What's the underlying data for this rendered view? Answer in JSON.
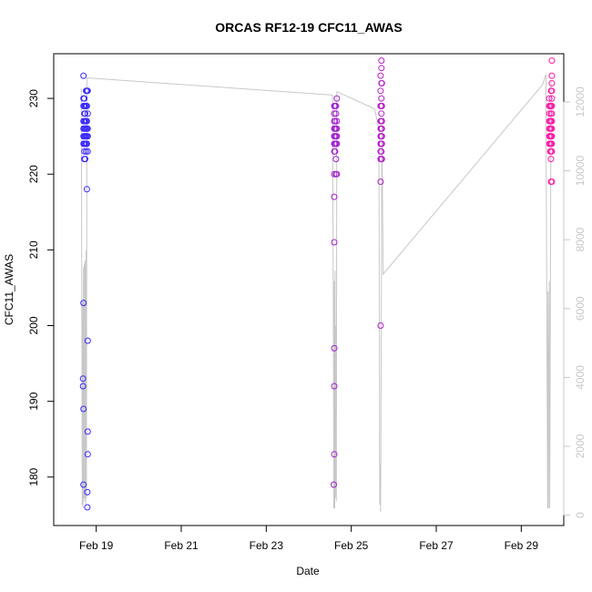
{
  "chart_data": {
    "type": "scatter",
    "title": "ORCAS RF12-19 CFC11_AWAS",
    "xlabel": "Date",
    "ylabel": "CFC11_AWAS",
    "xlim": [
      "2016-02-18T00:00",
      "2016-03-01T00:00"
    ],
    "ylim": [
      173.6,
      235.9
    ],
    "x_ticks": [
      {
        "value": "2016-02-19",
        "label": "Feb 19"
      },
      {
        "value": "2016-02-21",
        "label": "Feb 21"
      },
      {
        "value": "2016-02-23",
        "label": "Feb 23"
      },
      {
        "value": "2016-02-25",
        "label": "Feb 25"
      },
      {
        "value": "2016-02-27",
        "label": "Feb 27"
      },
      {
        "value": "2016-02-29",
        "label": "Feb 29"
      }
    ],
    "y_ticks": [
      180,
      190,
      200,
      210,
      220,
      230
    ],
    "right_axis": {
      "ylim": [
        -300,
        13400
      ],
      "ticks": [
        0,
        2000,
        4000,
        6000,
        8000,
        10000,
        12000
      ],
      "color": "#c8c8c8"
    },
    "grid": false,
    "colors": {
      "points_start": "#3a2aff",
      "points_end": "#ff1aa8",
      "altitude_line": "#c8c8c8"
    },
    "series": [
      {
        "style": "points",
        "points": [
          [
            "2016-02-18T16:48",
            233
          ],
          [
            "2016-02-18T16:48",
            230
          ],
          [
            "2016-02-18T16:48",
            229
          ],
          [
            "2016-02-18T16:48",
            227
          ],
          [
            "2016-02-18T16:48",
            226
          ],
          [
            "2016-02-18T16:48",
            225
          ],
          [
            "2016-02-18T16:48",
            224
          ],
          [
            "2016-02-18T16:48",
            203
          ],
          [
            "2016-02-18T16:48",
            189
          ],
          [
            "2016-02-18T16:48",
            179
          ],
          [
            "2016-02-18T16:34",
            193
          ],
          [
            "2016-02-18T16:34",
            192
          ],
          [
            "2016-02-18T17:17",
            230
          ],
          [
            "2016-02-18T17:17",
            229
          ],
          [
            "2016-02-18T17:17",
            228
          ],
          [
            "2016-02-18T17:17",
            227
          ],
          [
            "2016-02-18T17:17",
            226
          ],
          [
            "2016-02-18T17:17",
            225
          ],
          [
            "2016-02-18T17:17",
            224
          ],
          [
            "2016-02-18T17:17",
            223
          ],
          [
            "2016-02-18T17:17",
            222
          ],
          [
            "2016-02-18T17:46",
            229
          ],
          [
            "2016-02-18T17:46",
            228
          ],
          [
            "2016-02-18T17:46",
            227
          ],
          [
            "2016-02-18T17:46",
            226
          ],
          [
            "2016-02-18T17:46",
            225
          ],
          [
            "2016-02-18T17:46",
            224
          ],
          [
            "2016-02-18T17:46",
            222
          ],
          [
            "2016-02-18T18:14",
            231
          ],
          [
            "2016-02-18T18:14",
            229
          ],
          [
            "2016-02-18T18:14",
            227
          ],
          [
            "2016-02-18T18:14",
            226
          ],
          [
            "2016-02-18T18:14",
            225
          ],
          [
            "2016-02-18T18:14",
            224
          ],
          [
            "2016-02-18T18:14",
            223
          ],
          [
            "2016-02-18T18:43",
            231
          ],
          [
            "2016-02-18T18:43",
            229
          ],
          [
            "2016-02-18T18:43",
            227
          ],
          [
            "2016-02-18T18:43",
            226
          ],
          [
            "2016-02-18T18:43",
            225
          ],
          [
            "2016-02-18T18:43",
            224
          ],
          [
            "2016-02-18T18:43",
            218
          ],
          [
            "2016-02-18T19:12",
            231
          ],
          [
            "2016-02-18T19:12",
            228
          ],
          [
            "2016-02-18T19:12",
            226
          ],
          [
            "2016-02-18T19:12",
            225
          ],
          [
            "2016-02-18T19:12",
            223
          ],
          [
            "2016-02-18T19:12",
            198
          ],
          [
            "2016-02-18T19:12",
            186
          ],
          [
            "2016-02-18T19:12",
            183
          ],
          [
            "2016-02-18T18:58",
            178
          ],
          [
            "2016-02-18T18:58",
            176
          ],
          [
            "2016-02-24T14:24",
            229
          ],
          [
            "2016-02-24T14:24",
            228
          ],
          [
            "2016-02-24T14:24",
            227
          ],
          [
            "2016-02-24T14:24",
            226
          ],
          [
            "2016-02-24T14:24",
            225
          ],
          [
            "2016-02-24T14:24",
            224
          ],
          [
            "2016-02-24T14:24",
            223
          ],
          [
            "2016-02-24T14:24",
            220
          ],
          [
            "2016-02-24T14:24",
            217
          ],
          [
            "2016-02-24T14:24",
            211
          ],
          [
            "2016-02-24T14:24",
            197
          ],
          [
            "2016-02-24T14:24",
            192
          ],
          [
            "2016-02-24T14:24",
            183
          ],
          [
            "2016-02-24T14:10",
            179
          ],
          [
            "2016-02-24T14:53",
            229
          ],
          [
            "2016-02-24T14:53",
            227
          ],
          [
            "2016-02-24T14:53",
            226
          ],
          [
            "2016-02-24T14:53",
            225
          ],
          [
            "2016-02-24T14:53",
            224
          ],
          [
            "2016-02-24T14:53",
            223
          ],
          [
            "2016-02-24T15:22",
            229
          ],
          [
            "2016-02-24T15:22",
            228
          ],
          [
            "2016-02-24T15:22",
            226
          ],
          [
            "2016-02-24T15:22",
            225
          ],
          [
            "2016-02-24T15:22",
            224
          ],
          [
            "2016-02-24T15:22",
            222
          ],
          [
            "2016-02-24T15:22",
            220
          ],
          [
            "2016-02-24T15:50",
            230
          ],
          [
            "2016-02-24T15:50",
            227
          ],
          [
            "2016-02-24T15:50",
            226
          ],
          [
            "2016-02-24T15:50",
            225
          ],
          [
            "2016-02-24T15:50",
            224
          ],
          [
            "2016-02-24T15:50",
            220
          ],
          [
            "2016-02-25T16:34",
            233
          ],
          [
            "2016-02-25T16:34",
            231
          ],
          [
            "2016-02-25T16:34",
            229
          ],
          [
            "2016-02-25T16:34",
            227
          ],
          [
            "2016-02-25T16:34",
            226
          ],
          [
            "2016-02-25T16:34",
            225
          ],
          [
            "2016-02-25T16:34",
            224
          ],
          [
            "2016-02-25T16:34",
            223
          ],
          [
            "2016-02-25T16:34",
            222
          ],
          [
            "2016-02-25T16:34",
            219
          ],
          [
            "2016-02-25T16:34",
            200
          ],
          [
            "2016-02-25T17:02",
            235
          ],
          [
            "2016-02-25T17:02",
            234
          ],
          [
            "2016-02-25T17:02",
            232
          ],
          [
            "2016-02-25T17:02",
            230
          ],
          [
            "2016-02-25T17:02",
            229
          ],
          [
            "2016-02-25T17:02",
            228
          ],
          [
            "2016-02-25T17:02",
            227
          ],
          [
            "2016-02-25T17:02",
            226
          ],
          [
            "2016-02-25T17:02",
            225
          ],
          [
            "2016-02-25T17:02",
            224
          ],
          [
            "2016-02-25T17:02",
            223
          ],
          [
            "2016-02-25T17:02",
            222
          ],
          [
            "2016-02-25T17:17",
            232
          ],
          [
            "2016-02-25T17:17",
            229
          ],
          [
            "2016-02-25T17:17",
            227
          ],
          [
            "2016-02-25T17:17",
            226
          ],
          [
            "2016-02-25T17:17",
            225
          ],
          [
            "2016-02-25T17:17",
            224
          ],
          [
            "2016-02-25T17:17",
            222
          ],
          [
            "2016-02-29T15:50",
            230
          ],
          [
            "2016-02-29T15:50",
            229
          ],
          [
            "2016-02-29T15:50",
            228
          ],
          [
            "2016-02-29T15:50",
            227
          ],
          [
            "2016-02-29T15:50",
            226
          ],
          [
            "2016-02-29T15:50",
            225
          ],
          [
            "2016-02-29T15:50",
            224
          ],
          [
            "2016-02-29T16:19",
            229
          ],
          [
            "2016-02-29T16:19",
            227
          ],
          [
            "2016-02-29T16:19",
            226
          ],
          [
            "2016-02-29T16:19",
            225
          ],
          [
            "2016-02-29T16:19",
            224
          ],
          [
            "2016-02-29T16:19",
            223
          ],
          [
            "2016-02-29T16:48",
            231
          ],
          [
            "2016-02-29T16:48",
            229
          ],
          [
            "2016-02-29T16:48",
            228
          ],
          [
            "2016-02-29T16:48",
            227
          ],
          [
            "2016-02-29T16:48",
            226
          ],
          [
            "2016-02-29T16:48",
            225
          ],
          [
            "2016-02-29T16:48",
            224
          ],
          [
            "2016-02-29T16:48",
            223
          ],
          [
            "2016-02-29T16:48",
            222
          ],
          [
            "2016-02-29T16:48",
            219
          ],
          [
            "2016-02-29T17:17",
            235
          ],
          [
            "2016-02-29T17:17",
            233
          ],
          [
            "2016-02-29T17:17",
            232
          ],
          [
            "2016-02-29T17:17",
            231
          ],
          [
            "2016-02-29T17:17",
            230
          ],
          [
            "2016-02-29T17:17",
            229
          ],
          [
            "2016-02-29T17:17",
            228
          ],
          [
            "2016-02-29T17:17",
            227
          ],
          [
            "2016-02-29T17:17",
            226
          ],
          [
            "2016-02-29T17:17",
            225
          ],
          [
            "2016-02-29T17:17",
            224
          ],
          [
            "2016-02-29T17:17",
            223
          ],
          [
            "2016-02-29T17:17",
            219
          ]
        ]
      },
      {
        "style": "line",
        "axis": "right",
        "points": [
          [
            "2016-02-18T15:36",
            12400
          ],
          [
            "2016-02-18T16:05",
            300
          ],
          [
            "2016-02-18T16:19",
            6200
          ],
          [
            "2016-02-18T16:34",
            200
          ],
          [
            "2016-02-18T16:48",
            7200
          ],
          [
            "2016-02-18T17:02",
            500
          ],
          [
            "2016-02-18T17:17",
            7300
          ],
          [
            "2016-02-18T17:31",
            400
          ],
          [
            "2016-02-18T17:46",
            7400
          ],
          [
            "2016-02-18T18:00",
            300
          ],
          [
            "2016-02-18T18:14",
            7700
          ],
          [
            "2016-02-18T18:29",
            500
          ],
          [
            "2016-02-18T18:43",
            12700
          ],
          [
            "2016-02-24T13:26",
            12200
          ],
          [
            "2016-02-24T13:55",
            5000
          ],
          [
            "2016-02-24T14:10",
            200
          ],
          [
            "2016-02-24T14:24",
            6800
          ],
          [
            "2016-02-24T14:38",
            200
          ],
          [
            "2016-02-24T14:53",
            7100
          ],
          [
            "2016-02-24T15:07",
            500
          ],
          [
            "2016-02-24T15:22",
            5500
          ],
          [
            "2016-02-24T15:36",
            400
          ],
          [
            "2016-02-24T15:50",
            12300
          ],
          [
            "2016-02-25T13:12",
            11800
          ],
          [
            "2016-02-25T15:36",
            11200
          ],
          [
            "2016-02-25T15:50",
            6000
          ],
          [
            "2016-02-25T16:05",
            300
          ],
          [
            "2016-02-25T16:19",
            1500
          ],
          [
            "2016-02-25T16:34",
            100
          ],
          [
            "2016-02-25T17:02",
            7000
          ],
          [
            "2016-02-25T17:17",
            11300
          ],
          [
            "2016-02-25T18:00",
            7000
          ],
          [
            "2016-02-29T12:00",
            12500
          ],
          [
            "2016-02-29T13:55",
            12800
          ],
          [
            "2016-02-29T14:24",
            6300
          ],
          [
            "2016-02-29T14:53",
            200
          ],
          [
            "2016-02-29T15:07",
            6500
          ],
          [
            "2016-02-29T15:22",
            200
          ],
          [
            "2016-02-29T15:50",
            6800
          ],
          [
            "2016-02-29T16:05",
            200
          ],
          [
            "2016-02-29T16:48",
            12600
          ]
        ]
      }
    ]
  }
}
